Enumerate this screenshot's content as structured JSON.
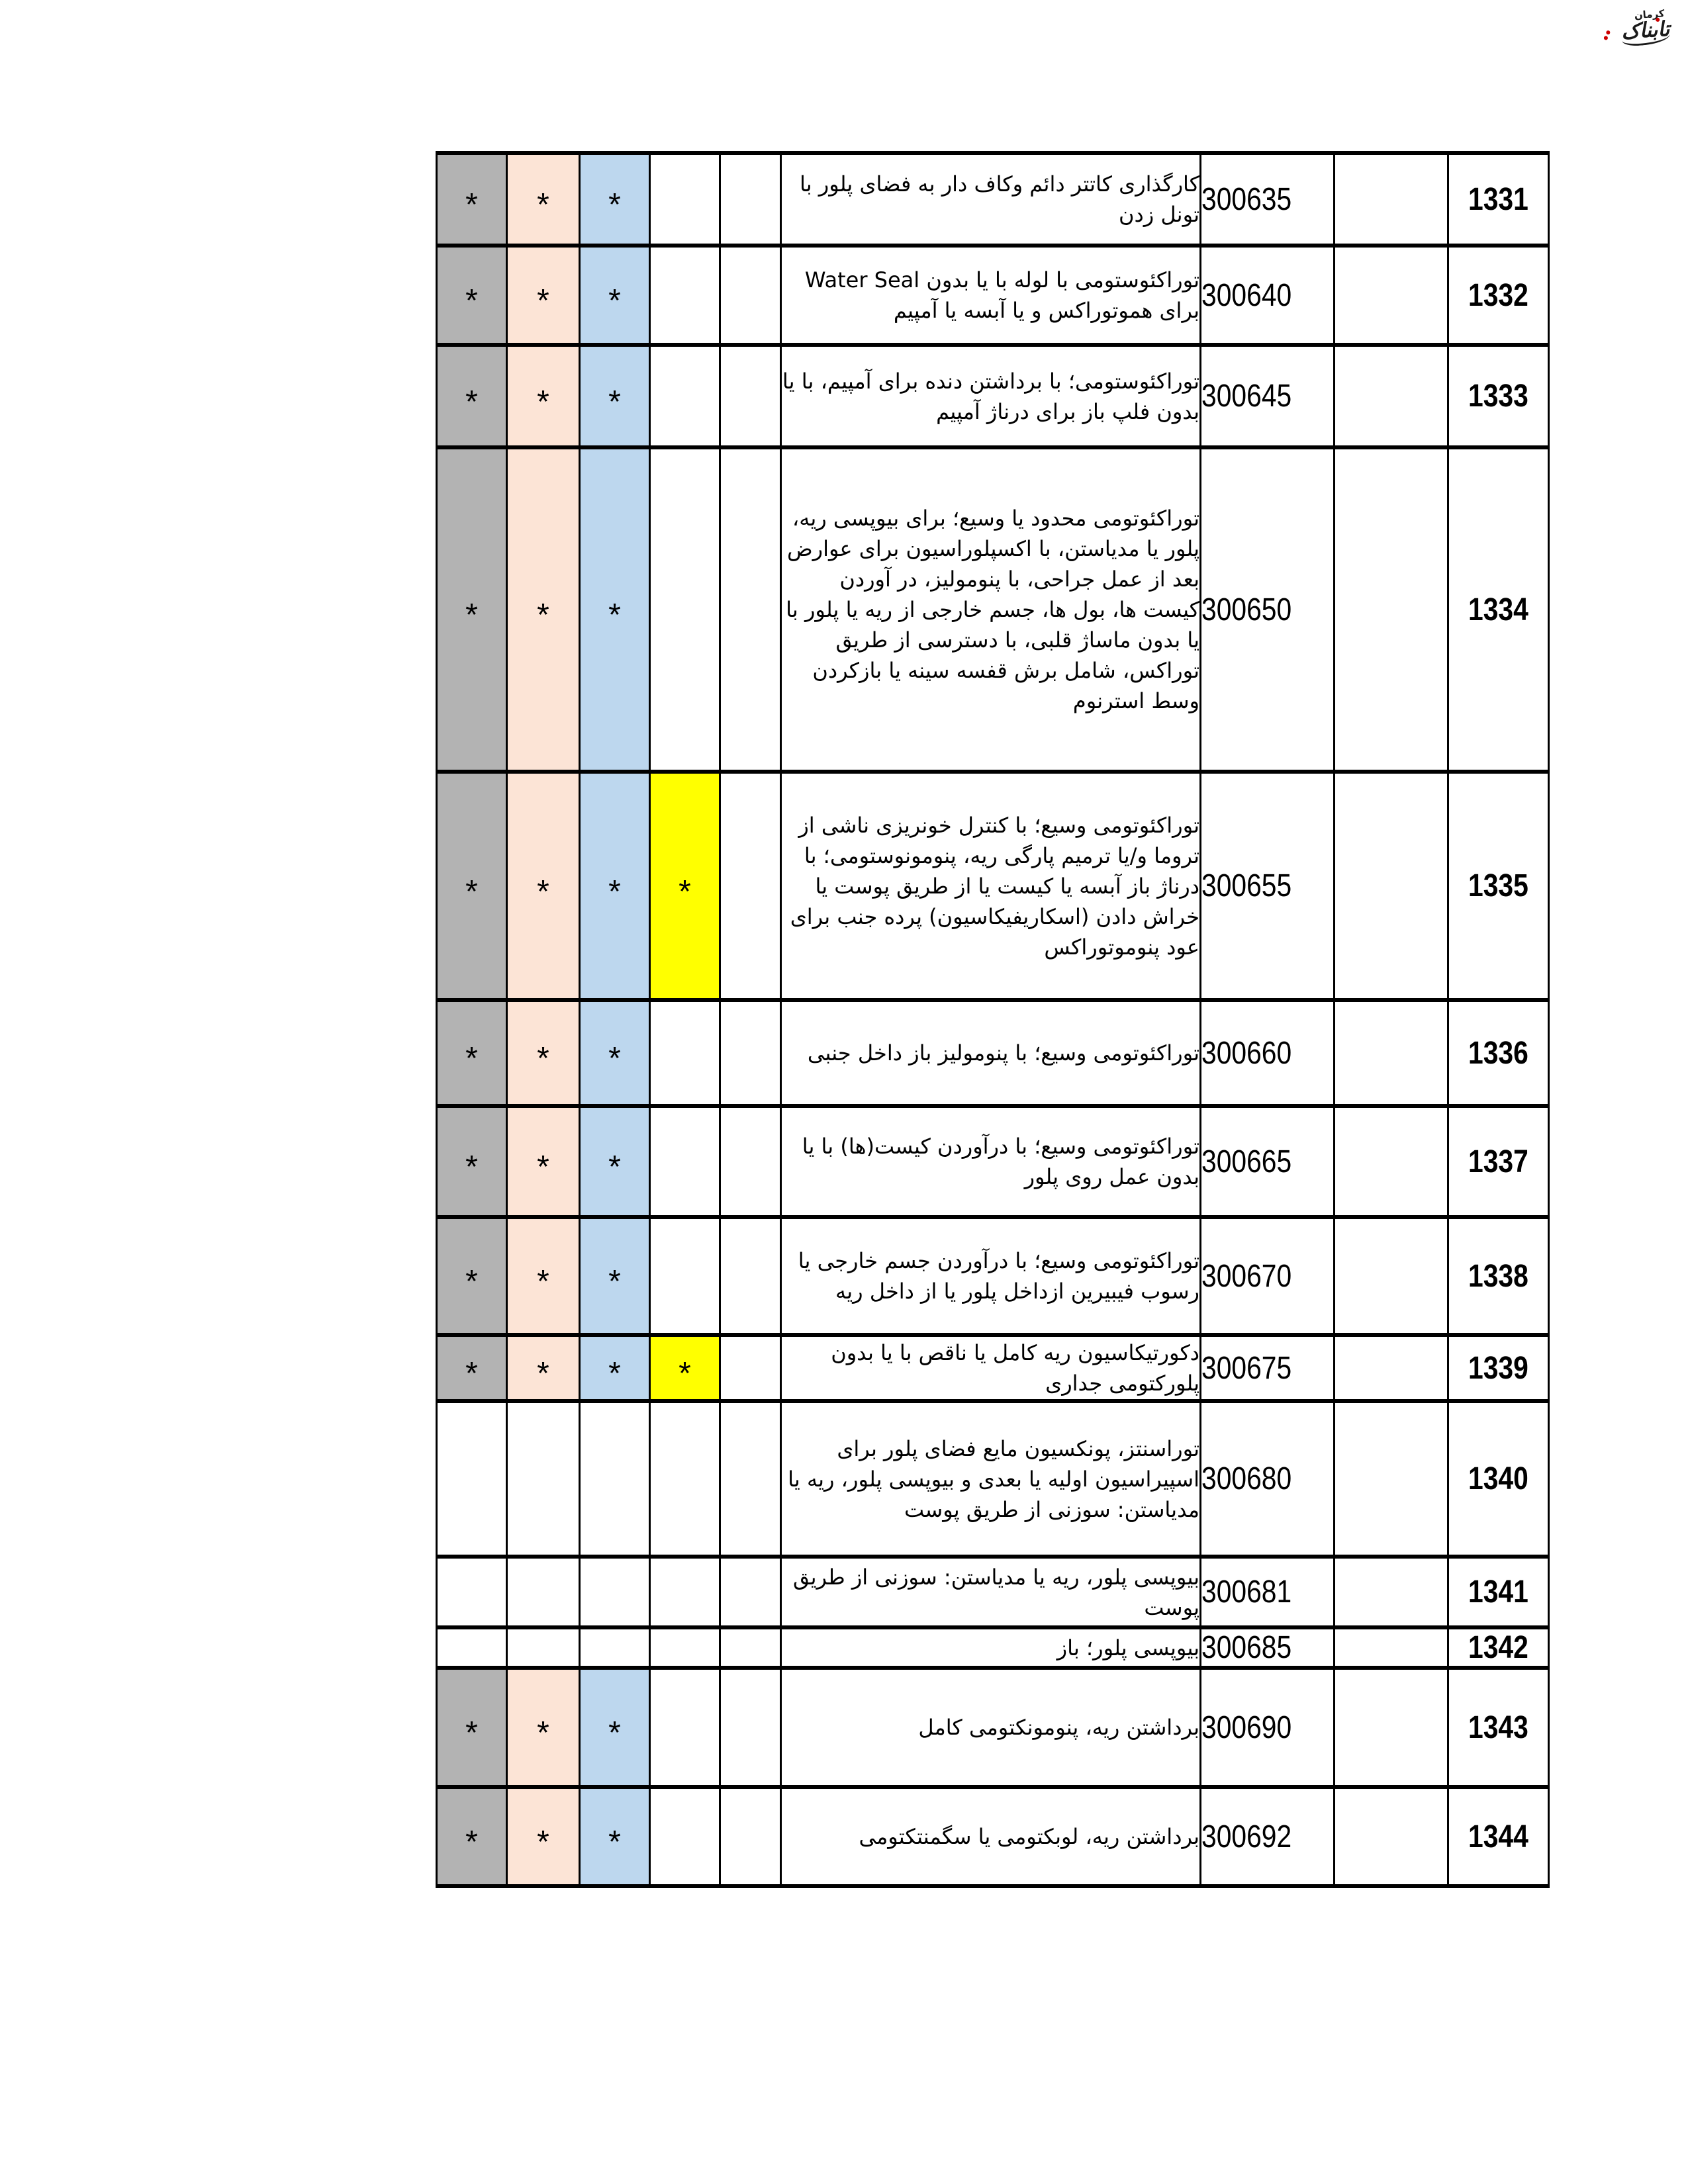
{
  "page": {
    "logo": {
      "brand": "تابناک",
      "region": "کرمان",
      "accent_color": "#cc0000"
    }
  },
  "table": {
    "star_glyph": "*",
    "colors": {
      "gray": "#b3b3b3",
      "peach": "#fce4d6",
      "blue": "#bdd7ee",
      "yellow": "#ffff00"
    },
    "rows": [
      {
        "row_no": "1331",
        "code": "300635",
        "description": "کارگذاری کاتتر دائم وکاف دار به فضای پلور با تونل زدن",
        "stars": [
          "gray",
          "peach",
          "blue"
        ]
      },
      {
        "row_no": "1332",
        "code": "300640",
        "description": "توراکئوستومی با لوله با یا بدون Water Seal برای هموتوراکس و یا آبسه یا آمپیم",
        "stars": [
          "gray",
          "peach",
          "blue"
        ]
      },
      {
        "row_no": "1333",
        "code": "300645",
        "description": "توراکئوستومی؛ با برداشتن دنده برای آمپیم، با یا بدون فلپ باز برای درناژ آمپیم",
        "stars": [
          "gray",
          "peach",
          "blue"
        ]
      },
      {
        "row_no": "1334",
        "code": "300650",
        "description": "توراکئوتومی محدود یا وسیع؛ برای بیوپسی ریه، پلور یا مدیاستن، با اکسپلوراسیون برای عوارض بعد از عمل جراحی، با پنومولیز، در آوردن کیست ها، بول ها، جسم خارجی از ریه یا پلور با یا بدون ماساژ قلبی، با دسترسی از طریق توراکس، شامل برش قفسه سینه یا بازکردن وسط استرنوم",
        "stars": [
          "gray",
          "peach",
          "blue"
        ]
      },
      {
        "row_no": "1335",
        "code": "300655",
        "description": "توراکئوتومی وسیع؛ با کنترل خونریزی ناشی از تروما و/یا ترمیم پارگی ریه، پنومونوستومی؛ با درناژ باز آبسه یا کیست یا از طریق پوست یا خراش دادن (اسکاریفیکاسیون) پرده جنب برای عود پنوموتوراکس",
        "stars": [
          "gray",
          "peach",
          "blue",
          "yellow"
        ]
      },
      {
        "row_no": "1336",
        "code": "300660",
        "description": "توراکئوتومی وسیع؛ با پنومولیز باز داخل جنبی",
        "stars": [
          "gray",
          "peach",
          "blue"
        ]
      },
      {
        "row_no": "1337",
        "code": "300665",
        "description": "توراکئوتومی وسیع؛ با درآوردن کیست(ها) با یا بدون عمل روی پلور",
        "stars": [
          "gray",
          "peach",
          "blue"
        ]
      },
      {
        "row_no": "1338",
        "code": "300670",
        "description": "توراکئوتومی وسیع؛ با درآوردن جسم خارجی یا رسوب فیبیرین ازداخل پلور یا از داخل ریه",
        "stars": [
          "gray",
          "peach",
          "blue"
        ]
      },
      {
        "row_no": "1339",
        "code": "300675",
        "description": "دکورتیکاسیون ریه کامل یا ناقص با یا بدون پلورکتومی جداری",
        "stars": [
          "gray",
          "peach",
          "blue",
          "yellow"
        ]
      },
      {
        "row_no": "1340",
        "code": "300680",
        "description": "توراسنتز، پونکسیون مایع فضای پلور برای اسپیراسیون اولیه یا بعدی و بیوپسی پلور، ریه یا مدیاستن: سوزنی از طریق پوست",
        "stars": []
      },
      {
        "row_no": "1341",
        "code": "300681",
        "description": "بیوپسی پلور، ریه یا مدیاستن: سوزنی از طریق پوست",
        "stars": []
      },
      {
        "row_no": "1342",
        "code": "300685",
        "description": "بیوپسی پلور؛ باز",
        "stars": []
      },
      {
        "row_no": "1343",
        "code": "300690",
        "description": "برداشتن ریه، پنومونکتومی کامل",
        "stars": [
          "gray",
          "peach",
          "blue"
        ]
      },
      {
        "row_no": "1344",
        "code": "300692",
        "description": "برداشتن ریه، لوبکتومی یا سگمنتکتومی",
        "stars": [
          "gray",
          "peach",
          "blue"
        ]
      }
    ]
  }
}
